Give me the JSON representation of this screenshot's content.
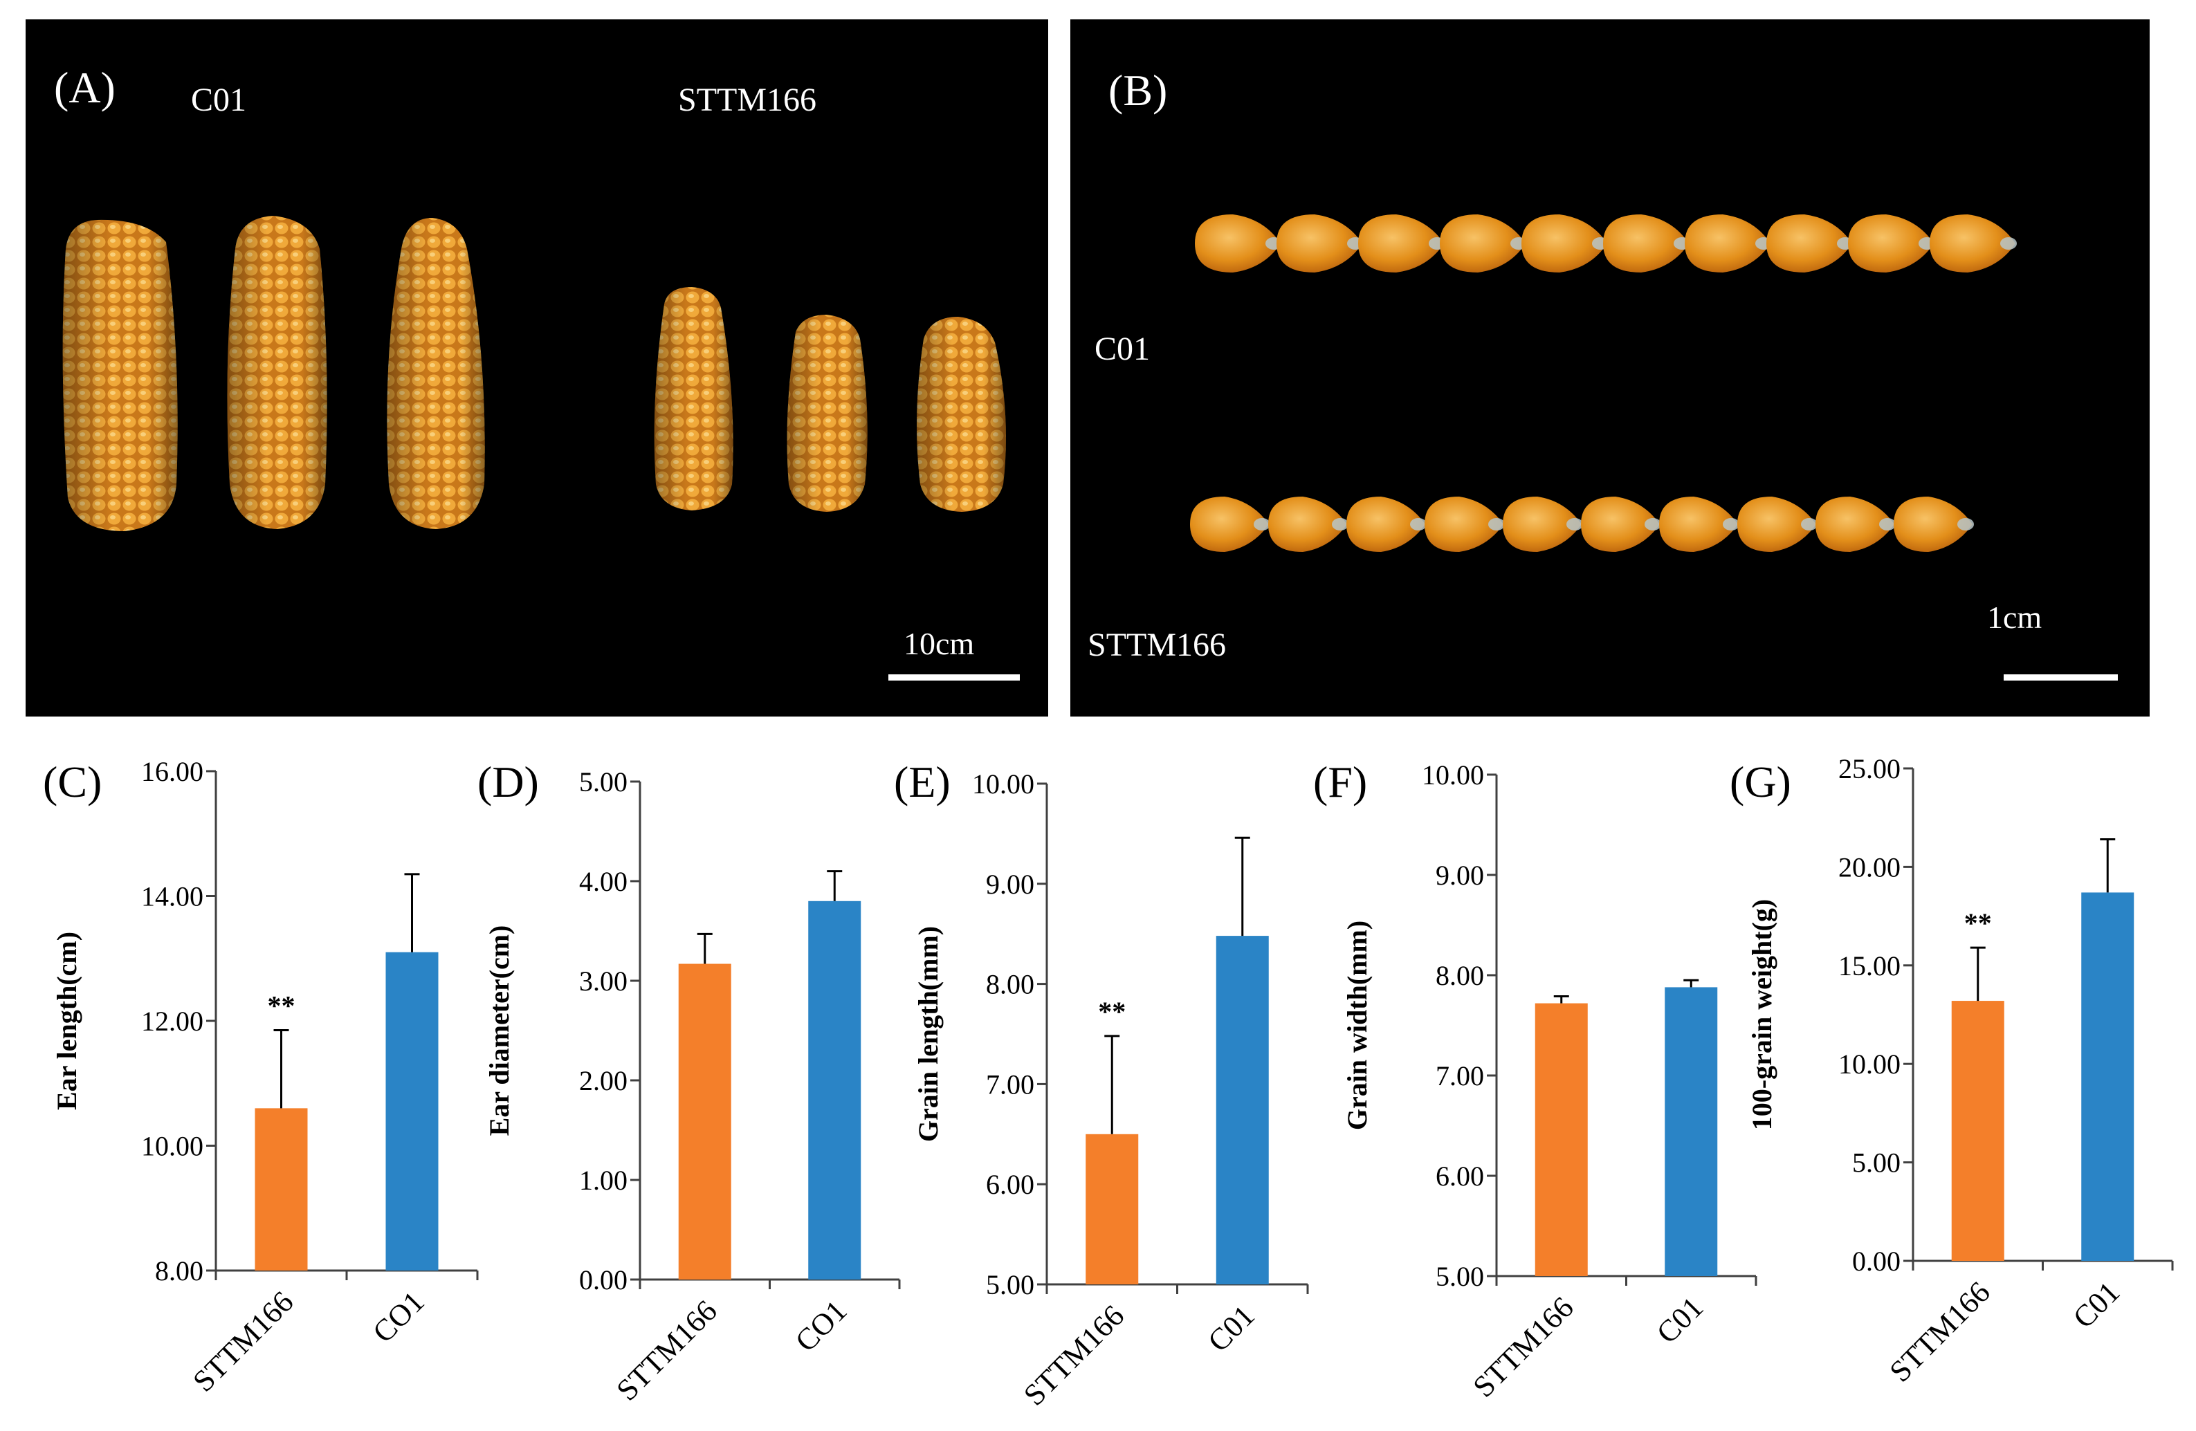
{
  "panel_a": {
    "label": "(A)",
    "group_left": "C01",
    "group_right": "STTM166",
    "scale_label": "10cm"
  },
  "panel_b": {
    "label": "(B)",
    "row_top": "C01",
    "row_bottom": "STTM166",
    "scale_label": "1cm"
  },
  "colors": {
    "sttm": "#f47f2a",
    "c01": "#2a84c6",
    "kernel": "#e8951f",
    "photo_bg": "#000000"
  },
  "chart_data": [
    {
      "panel": "(C)",
      "type": "bar",
      "ylabel": "Ear length(cm)",
      "categories": [
        "STTM166",
        "CO1"
      ],
      "values": [
        10.6,
        13.1
      ],
      "errors": [
        1.25,
        1.25
      ],
      "ylim": [
        8,
        16
      ],
      "yticks": [
        "8.00",
        "10.00",
        "12.00",
        "14.00",
        "16.00"
      ],
      "significance": [
        "**",
        ""
      ]
    },
    {
      "panel": "(D)",
      "type": "bar",
      "ylabel": "Ear diameter(cm)",
      "categories": [
        "STTM166",
        "CO1"
      ],
      "values": [
        3.17,
        3.8
      ],
      "errors": [
        0.3,
        0.3
      ],
      "ylim": [
        0,
        5
      ],
      "yticks": [
        "0.00",
        "1.00",
        "2.00",
        "3.00",
        "4.00",
        "5.00"
      ],
      "significance": [
        "",
        ""
      ]
    },
    {
      "panel": "(E)",
      "type": "bar",
      "ylabel": "Grain length(mm)",
      "categories": [
        "STTM166",
        "C01"
      ],
      "values": [
        6.5,
        8.48
      ],
      "errors": [
        0.98,
        0.98
      ],
      "ylim": [
        5,
        10
      ],
      "yticks": [
        "5.00",
        "6.00",
        "7.00",
        "8.00",
        "9.00",
        "10.00"
      ],
      "significance": [
        "**",
        ""
      ]
    },
    {
      "panel": "(F)",
      "type": "bar",
      "ylabel": "Grain width(mm)",
      "categories": [
        "STTM166",
        "C01"
      ],
      "values": [
        7.72,
        7.88
      ],
      "errors": [
        0.07,
        0.07
      ],
      "ylim": [
        5,
        10
      ],
      "yticks": [
        "5.00",
        "6.00",
        "7.00",
        "8.00",
        "9.00",
        "10.00"
      ],
      "significance": [
        "",
        ""
      ]
    },
    {
      "panel": "(G)",
      "type": "bar",
      "ylabel": "100-grain weight(g)",
      "categories": [
        "STTM166",
        "C01"
      ],
      "values": [
        13.2,
        18.7
      ],
      "errors": [
        2.7,
        2.7
      ],
      "ylim": [
        0,
        25
      ],
      "yticks": [
        "0.00",
        "5.00",
        "10.00",
        "15.00",
        "20.00",
        "25.00"
      ],
      "significance": [
        "**",
        ""
      ]
    }
  ]
}
